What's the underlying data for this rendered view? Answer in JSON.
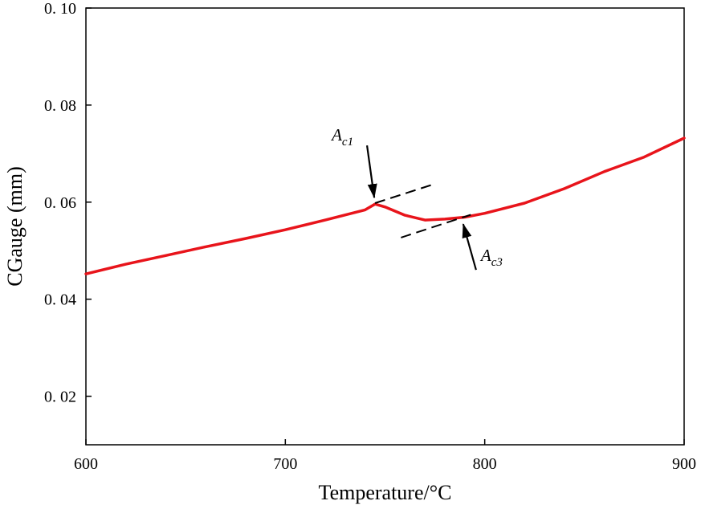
{
  "chart_data": {
    "type": "line",
    "title": "",
    "xlabel": "Temperature/°C",
    "ylabel": "CGauge (mm)",
    "xlim": [
      600,
      900
    ],
    "ylim": [
      0.01,
      0.1
    ],
    "xticks": [
      600,
      700,
      800,
      900
    ],
    "xtick_labels": [
      "600",
      "700",
      "800",
      "900"
    ],
    "yticks": [
      0.02,
      0.04,
      0.06,
      0.08,
      0.1
    ],
    "ytick_labels": [
      "0. 02",
      "0. 04",
      "0. 06",
      "0. 08",
      "0. 10"
    ],
    "grid": false,
    "series": [
      {
        "color": "#e8141b",
        "x": [
          600,
          620,
          640,
          660,
          680,
          700,
          720,
          740,
          745,
          750,
          760,
          770,
          780,
          790,
          800,
          820,
          840,
          860,
          880,
          900
        ],
        "y": [
          0.0452,
          0.0472,
          0.049,
          0.0508,
          0.0525,
          0.0543,
          0.0563,
          0.0584,
          0.0596,
          0.059,
          0.0573,
          0.0563,
          0.0565,
          0.0569,
          0.0577,
          0.0598,
          0.0628,
          0.0663,
          0.0693,
          0.0732
        ]
      }
    ],
    "annotations": [
      {
        "label": "Ac1",
        "base": "A",
        "sub": "c1",
        "at": [
          745,
          0.0596
        ]
      },
      {
        "label": "Ac3",
        "base": "A",
        "sub": "c3",
        "at": [
          788,
          0.0568
        ]
      }
    ],
    "tangent_lines": [
      {
        "from": [
          745,
          0.0598
        ],
        "to": [
          773,
          0.0635
        ]
      },
      {
        "from": [
          758,
          0.0527
        ],
        "to": [
          793,
          0.0574
        ]
      }
    ]
  }
}
